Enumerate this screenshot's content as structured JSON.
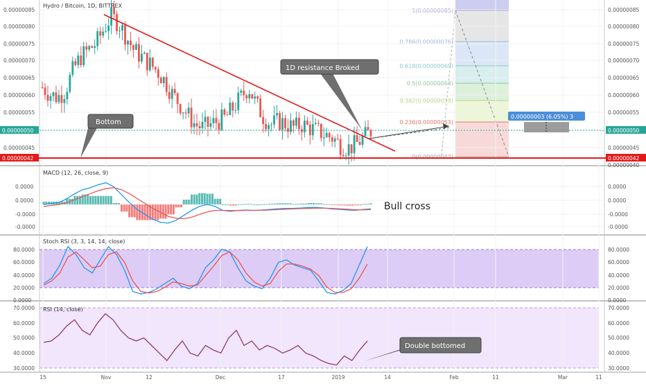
{
  "header": {
    "title": "Hydro / Bitcoin, 1D, BITTREX"
  },
  "colors": {
    "up": "#26a69a",
    "down": "#ef5350",
    "macd": "#2196f3",
    "signal": "#e45757",
    "stoch_k": "#2196f3",
    "stoch_d": "#ef5350",
    "rsi": "#8e3b6d",
    "trend": "#e31919",
    "support": "#e31919",
    "band": "#d9c6f5",
    "rsi_band": "#f1e6fb",
    "callout": "#6f6f6f"
  },
  "price_panel": {
    "axis_labels": [
      "0.00000085",
      "0.00000080",
      "0.00000075",
      "0.00000070",
      "0.00000065",
      "0.00000060",
      "0.00000055",
      "0.00000050",
      "0.00000045"
    ],
    "axis_labels_right": [
      "0.00000085",
      "0.00000080",
      "0.00000075",
      "0.00000070",
      "0.00000065",
      "0.00000060",
      "0.00000055",
      "0.00000050",
      "0.00000045",
      "0.00000040"
    ],
    "current_price": "0.00000050",
    "support_price": "0.00000042",
    "resistance_label": "1D resistance Broked",
    "bottom_label": "Bottom",
    "measure_label": "0.00000003 (6.05%) 3"
  },
  "fibonacci": {
    "levels": [
      {
        "ratio": 1,
        "label": "1(0.00000085)",
        "color": "#a6a6d8"
      },
      {
        "ratio": 0.786,
        "label": "0.786(0.00000076)",
        "color": "#9ab8d8"
      },
      {
        "ratio": 0.618,
        "label": "0.618(0.00000069)",
        "color": "#8fc7c7"
      },
      {
        "ratio": 0.5,
        "label": "0.5(0.00000064)",
        "color": "#8ec99a"
      },
      {
        "ratio": 0.382,
        "label": "0.382(0.00000059)",
        "color": "#b7d68a"
      },
      {
        "ratio": 0.236,
        "label": "0.236(0.00000053)",
        "color": "#e57373"
      },
      {
        "ratio": 0,
        "label": "0(0.00000043)",
        "color": "#9e9e9e"
      }
    ]
  },
  "macd_panel": {
    "label": "MACD (12, 26, close, 9)",
    "axis_labels": [
      "0.0000",
      "0.0000",
      "0.0000",
      "-0.0000",
      "-0.0000"
    ],
    "annotation": "Bull cross"
  },
  "stoch_panel": {
    "label": "Stoch RSI (3, 3, 14, 14, close)",
    "axis_labels": [
      "80.0000",
      "60.0000",
      "40.0000",
      "20.0000",
      "0.0000"
    ]
  },
  "rsi_panel": {
    "label": "RSI (14, close)",
    "axis_labels": [
      "70.0000",
      "60.0000",
      "50.0000",
      "40.0000",
      "30.0000"
    ],
    "annotation": "Double bottomed"
  },
  "time_axis": {
    "labels": [
      "15",
      "Nov",
      "12",
      "Dec",
      "17",
      "2019",
      "14",
      "Feb",
      "11",
      "Mar",
      "11"
    ]
  },
  "chart_data": {
    "type": "candlestick",
    "title": "Hydro / Bitcoin, 1D, BITTREX",
    "x_ticks": [
      "15",
      "Nov",
      "12",
      "Dec",
      "17",
      "2019",
      "14",
      "Feb",
      "11",
      "Mar",
      "11"
    ],
    "price_ylim": [
      4e-07,
      8.6e-07
    ],
    "price_trend": [
      6.3e-07,
      6.1e-07,
      6e-07,
      6.2e-07,
      6.8e-07,
      7.2e-07,
      7.4e-07,
      7.6e-07,
      8e-07,
      8.4e-07,
      8.2e-07,
      7.8e-07,
      7.4e-07,
      7.2e-07,
      7e-07,
      6.8e-07,
      6.5e-07,
      6.1e-07,
      5.8e-07,
      5.5e-07,
      5.2e-07,
      5.1e-07,
      5.2e-07,
      5.3e-07,
      5.4e-07,
      5.7e-07,
      6e-07,
      6.3e-07,
      5.8e-07,
      5.4e-07,
      5.2e-07,
      5.3e-07,
      5.2e-07,
      5.1e-07,
      5.2e-07,
      5.1e-07,
      5e-07,
      4.9e-07,
      4.8e-07,
      4.6e-07,
      4.5e-07,
      4.6e-07,
      4.8e-07,
      5e-07
    ],
    "support_level": 4.2e-07,
    "current_price": 5e-07,
    "macd": [
      0.0,
      0.05,
      0.1,
      0.3,
      0.55,
      0.75,
      0.85,
      1.0,
      1.1,
      0.9,
      0.5,
      0.1,
      -0.25,
      -0.5,
      -0.75,
      -0.9,
      -0.95,
      -0.8,
      -0.55,
      -0.3,
      -0.1,
      0.0,
      -0.1,
      -0.3,
      -0.35,
      -0.3,
      -0.28,
      -0.3,
      -0.28,
      -0.25,
      -0.22,
      -0.2,
      -0.2,
      -0.18,
      -0.15,
      -0.15,
      -0.18,
      -0.22,
      -0.25,
      -0.28,
      -0.3,
      -0.25,
      -0.22
    ],
    "macd_signal": [
      -0.1,
      -0.05,
      0.0,
      0.1,
      0.25,
      0.4,
      0.55,
      0.7,
      0.8,
      0.85,
      0.75,
      0.55,
      0.3,
      0.05,
      -0.2,
      -0.4,
      -0.6,
      -0.7,
      -0.72,
      -0.65,
      -0.5,
      -0.38,
      -0.3,
      -0.3,
      -0.31,
      -0.31,
      -0.3,
      -0.3,
      -0.29,
      -0.28,
      -0.26,
      -0.24,
      -0.22,
      -0.21,
      -0.2,
      -0.19,
      -0.19,
      -0.2,
      -0.22,
      -0.24,
      -0.27,
      -0.27,
      -0.26
    ],
    "stoch_ylim": [
      0,
      100
    ],
    "stoch_k": [
      25,
      35,
      60,
      95,
      80,
      55,
      45,
      70,
      95,
      80,
      50,
      10,
      5,
      8,
      15,
      25,
      35,
      20,
      15,
      25,
      55,
      70,
      90,
      85,
      55,
      30,
      20,
      15,
      35,
      65,
      70,
      60,
      55,
      50,
      30,
      8,
      5,
      12,
      25,
      60,
      95
    ],
    "stoch_d": [
      22,
      30,
      45,
      75,
      85,
      70,
      55,
      58,
      80,
      85,
      65,
      30,
      10,
      7,
      10,
      18,
      28,
      25,
      20,
      22,
      40,
      58,
      78,
      85,
      70,
      45,
      28,
      20,
      25,
      48,
      62,
      62,
      58,
      52,
      40,
      18,
      8,
      8,
      15,
      35,
      62
    ],
    "rsi_ylim": [
      30,
      70
    ],
    "rsi": [
      47,
      48,
      52,
      58,
      62,
      55,
      52,
      60,
      66,
      62,
      55,
      50,
      48,
      50,
      45,
      40,
      35,
      42,
      48,
      40,
      38,
      45,
      42,
      40,
      50,
      55,
      45,
      48,
      42,
      45,
      43,
      40,
      42,
      45,
      40,
      38,
      35,
      33,
      32,
      38,
      35,
      42,
      48
    ]
  }
}
